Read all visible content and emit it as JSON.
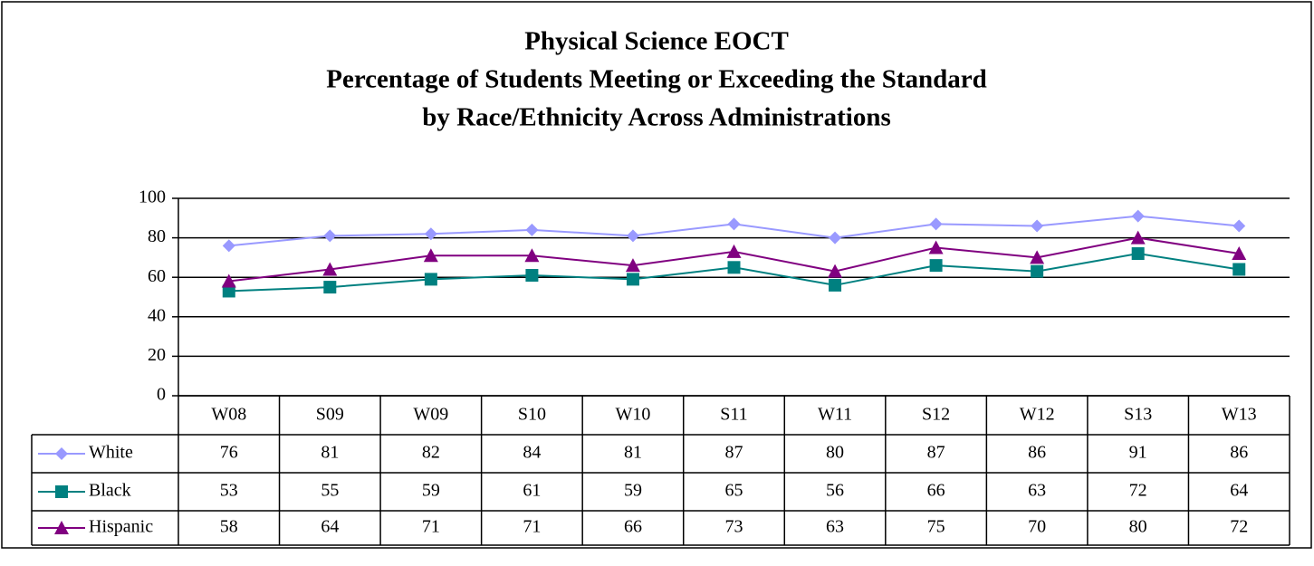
{
  "chart_data": {
    "type": "line",
    "title": [
      "Physical Science EOCT",
      "Percentage of Students Meeting or Exceeding the Standard",
      "by Race/Ethnicity Across Administrations"
    ],
    "categories": [
      "W08",
      "S09",
      "W09",
      "S10",
      "W10",
      "S11",
      "W11",
      "S12",
      "W12",
      "S13",
      "W13"
    ],
    "series": [
      {
        "name": "White",
        "color": "#9999ff",
        "marker": "diamond",
        "values": [
          76,
          81,
          82,
          84,
          81,
          87,
          80,
          87,
          86,
          91,
          86
        ]
      },
      {
        "name": "Black",
        "color": "#008080",
        "marker": "square",
        "values": [
          53,
          55,
          59,
          61,
          59,
          65,
          56,
          66,
          63,
          72,
          64
        ]
      },
      {
        "name": "Hispanic",
        "color": "#800080",
        "marker": "triangle",
        "values": [
          58,
          64,
          71,
          71,
          66,
          73,
          63,
          75,
          70,
          80,
          72
        ]
      }
    ],
    "ylim": [
      0,
      100
    ],
    "yticks": [
      0,
      20,
      40,
      60,
      80,
      100
    ],
    "grid": true,
    "data_table": true
  }
}
